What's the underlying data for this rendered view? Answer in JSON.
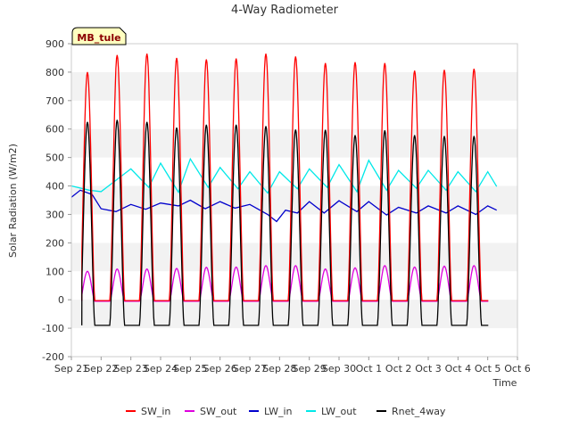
{
  "chart_data": {
    "type": "line",
    "title": "4-Way Radiometer",
    "xlabel": "Time",
    "ylabel": "Solar Radiation (W/m2)",
    "station_label": "MB_tule",
    "ylim": [
      -200,
      900
    ],
    "xlim": [
      0,
      15
    ],
    "x_tick_labels": [
      "Sep 21",
      "Sep 22",
      "Sep 23",
      "Sep 24",
      "Sep 25",
      "Sep 26",
      "Sep 27",
      "Sep 28",
      "Sep 29",
      "Sep 30",
      "Oct 1",
      "Oct 2",
      "Oct 3",
      "Oct 4",
      "Oct 5",
      "Oct 6"
    ],
    "y_ticks": [
      -200,
      -100,
      0,
      100,
      200,
      300,
      400,
      500,
      600,
      700,
      800,
      900
    ],
    "grid": "horizontal bands",
    "legend_position": "bottom",
    "series": [
      {
        "name": "SW_in",
        "color": "#ff0000",
        "daily_peaks": [
          800,
          860,
          865,
          850,
          845,
          848,
          865,
          855,
          832,
          835,
          832,
          805,
          808,
          812
        ],
        "night_value": -3
      },
      {
        "name": "SW_out",
        "color": "#dd00dd",
        "daily_peaks": [
          100,
          108,
          108,
          110,
          114,
          115,
          120,
          120,
          108,
          112,
          120,
          115,
          118,
          120
        ],
        "night_value": -5
      },
      {
        "name": "LW_in",
        "color": "#0000cc",
        "daily_values": [
          [
            0.0,
            360
          ],
          [
            0.3,
            385
          ],
          [
            0.7,
            370
          ],
          [
            1.0,
            320
          ],
          [
            1.5,
            310
          ],
          [
            2.0,
            335
          ],
          [
            2.5,
            318
          ],
          [
            3.0,
            340
          ],
          [
            3.6,
            330
          ],
          [
            4.0,
            350
          ],
          [
            4.5,
            320
          ],
          [
            5.0,
            345
          ],
          [
            5.5,
            322
          ],
          [
            6.0,
            335
          ],
          [
            6.6,
            300
          ],
          [
            6.9,
            275
          ],
          [
            7.2,
            315
          ],
          [
            7.6,
            305
          ],
          [
            8.0,
            345
          ],
          [
            8.5,
            305
          ],
          [
            9.0,
            348
          ],
          [
            9.6,
            310
          ],
          [
            10.0,
            345
          ],
          [
            10.6,
            298
          ],
          [
            11.0,
            325
          ],
          [
            11.6,
            305
          ],
          [
            12.0,
            330
          ],
          [
            12.6,
            305
          ],
          [
            13.0,
            330
          ],
          [
            13.6,
            300
          ],
          [
            14.0,
            330
          ],
          [
            14.3,
            315
          ]
        ]
      },
      {
        "name": "LW_out",
        "color": "#00e8e8",
        "daily_values": [
          [
            0.0,
            400
          ],
          [
            0.6,
            385
          ],
          [
            1.0,
            380
          ],
          [
            2.0,
            460
          ],
          [
            2.6,
            395
          ],
          [
            3.0,
            480
          ],
          [
            3.6,
            378
          ],
          [
            4.0,
            495
          ],
          [
            4.6,
            395
          ],
          [
            5.0,
            465
          ],
          [
            5.6,
            390
          ],
          [
            6.0,
            450
          ],
          [
            6.6,
            375
          ],
          [
            7.0,
            450
          ],
          [
            7.6,
            390
          ],
          [
            8.0,
            460
          ],
          [
            8.6,
            395
          ],
          [
            9.0,
            475
          ],
          [
            9.6,
            380
          ],
          [
            10.0,
            490
          ],
          [
            10.6,
            385
          ],
          [
            11.0,
            455
          ],
          [
            11.6,
            392
          ],
          [
            12.0,
            455
          ],
          [
            12.6,
            385
          ],
          [
            13.0,
            450
          ],
          [
            13.6,
            380
          ],
          [
            14.0,
            450
          ],
          [
            14.3,
            398
          ]
        ]
      },
      {
        "name": "Rnet_4way",
        "color": "#000000",
        "daily_peaks": [
          625,
          632,
          625,
          605,
          615,
          615,
          610,
          598,
          597,
          578,
          595,
          578,
          575,
          575
        ],
        "night_value": -90
      }
    ]
  }
}
